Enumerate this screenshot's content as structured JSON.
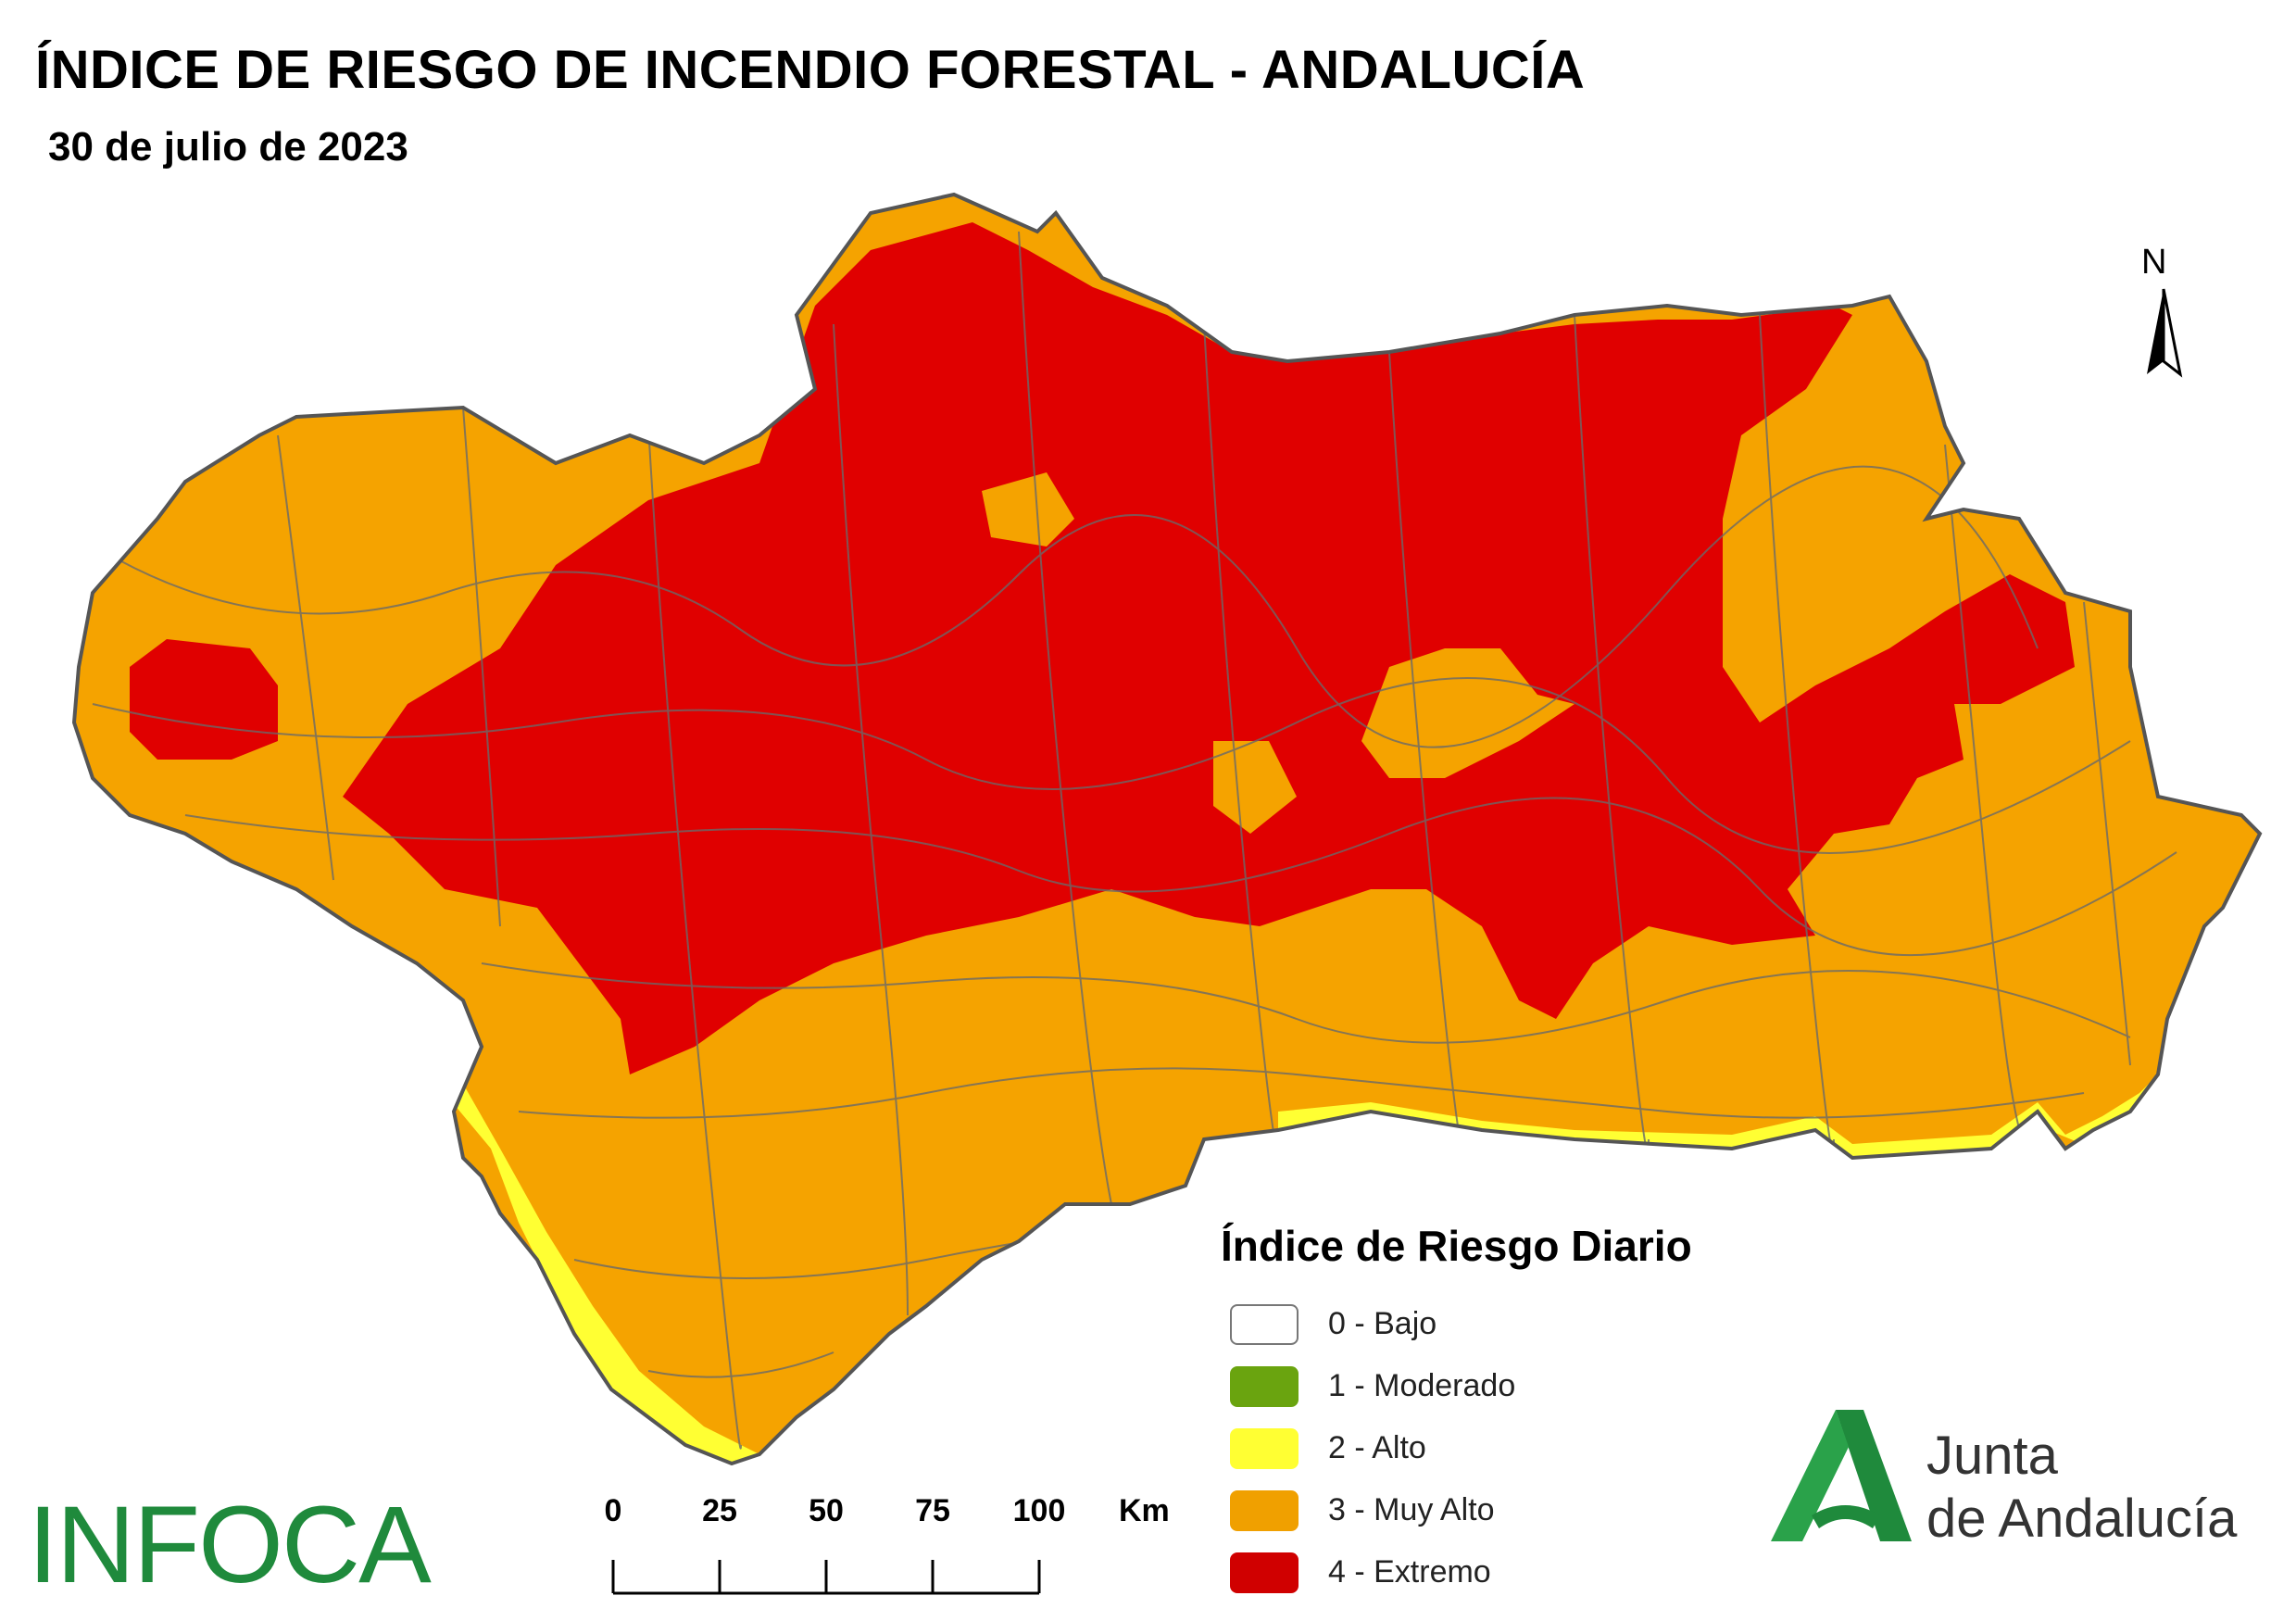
{
  "title": "ÍNDICE DE RIESGO DE INCENDIO FORESTAL - ANDALUCÍA",
  "subtitle": "30 de julio de 2023",
  "north_label": "N",
  "legend": {
    "title": "Índice de Riesgo Diario",
    "items": [
      {
        "label": "0 - Bajo",
        "color": "#ffffff"
      },
      {
        "label": "1 - Moderado",
        "color": "#6aa40f"
      },
      {
        "label": "2 - Alto",
        "color": "#ffff33"
      },
      {
        "label": "3 - Muy Alto",
        "color": "#f0a000"
      },
      {
        "label": "4 - Extremo",
        "color": "#d00000"
      }
    ]
  },
  "scale_bar": {
    "ticks": [
      "0",
      "25",
      "50",
      "75",
      "100"
    ],
    "unit": "Km"
  },
  "logos": {
    "infoca": "INFOCA",
    "junta_line1": "Junta",
    "junta_line2": "de Andalucía"
  },
  "colors": {
    "orange": "#f5a300",
    "red": "#e00000",
    "yellow": "#ffff33",
    "border": "#555555",
    "brand_green": "#1f8a3c"
  }
}
